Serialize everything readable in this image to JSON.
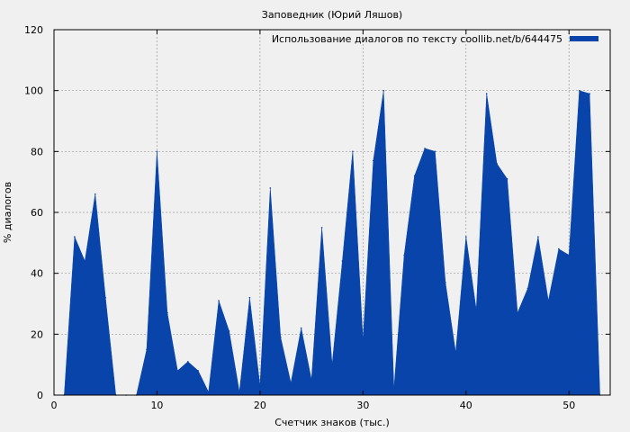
{
  "chart_data": {
    "type": "area",
    "title": "Заповедник (Юрий Ляшов)",
    "xlabel": "Счетчик знаков (тыс.)",
    "ylabel": "% диалогов",
    "xlim": [
      0,
      54
    ],
    "ylim": [
      0,
      120
    ],
    "x_ticks": [
      0,
      10,
      20,
      30,
      40,
      50
    ],
    "y_ticks": [
      0,
      20,
      40,
      60,
      80,
      100,
      120
    ],
    "grid": true,
    "legend_position": "top-right",
    "colors": {
      "series": "#0844aa",
      "background": "#f0f0f0",
      "grid": "#999999"
    },
    "series": [
      {
        "name": "Использование диалогов по тексту coollib.net/b/644475",
        "x": [
          1,
          2,
          3,
          4,
          5,
          6,
          7,
          8,
          9,
          10,
          11,
          12,
          13,
          14,
          15,
          16,
          17,
          18,
          19,
          20,
          21,
          22,
          23,
          24,
          25,
          26,
          27,
          28,
          29,
          30,
          31,
          32,
          33,
          34,
          35,
          36,
          37,
          38,
          39,
          40,
          41,
          42,
          43,
          44,
          45,
          46,
          47,
          48,
          49,
          50,
          51,
          52,
          53
        ],
        "values": [
          0,
          52,
          44,
          66,
          32,
          0,
          0,
          0,
          15,
          80,
          27,
          8,
          11,
          8,
          1,
          31,
          21,
          1,
          32,
          3,
          68,
          19,
          4,
          22,
          5,
          55,
          10,
          44,
          80,
          18,
          77,
          100,
          2,
          46,
          72,
          81,
          80,
          37,
          14,
          52,
          28,
          99,
          76,
          71,
          27,
          35,
          52,
          31,
          48,
          46,
          100,
          99,
          0
        ]
      }
    ]
  }
}
